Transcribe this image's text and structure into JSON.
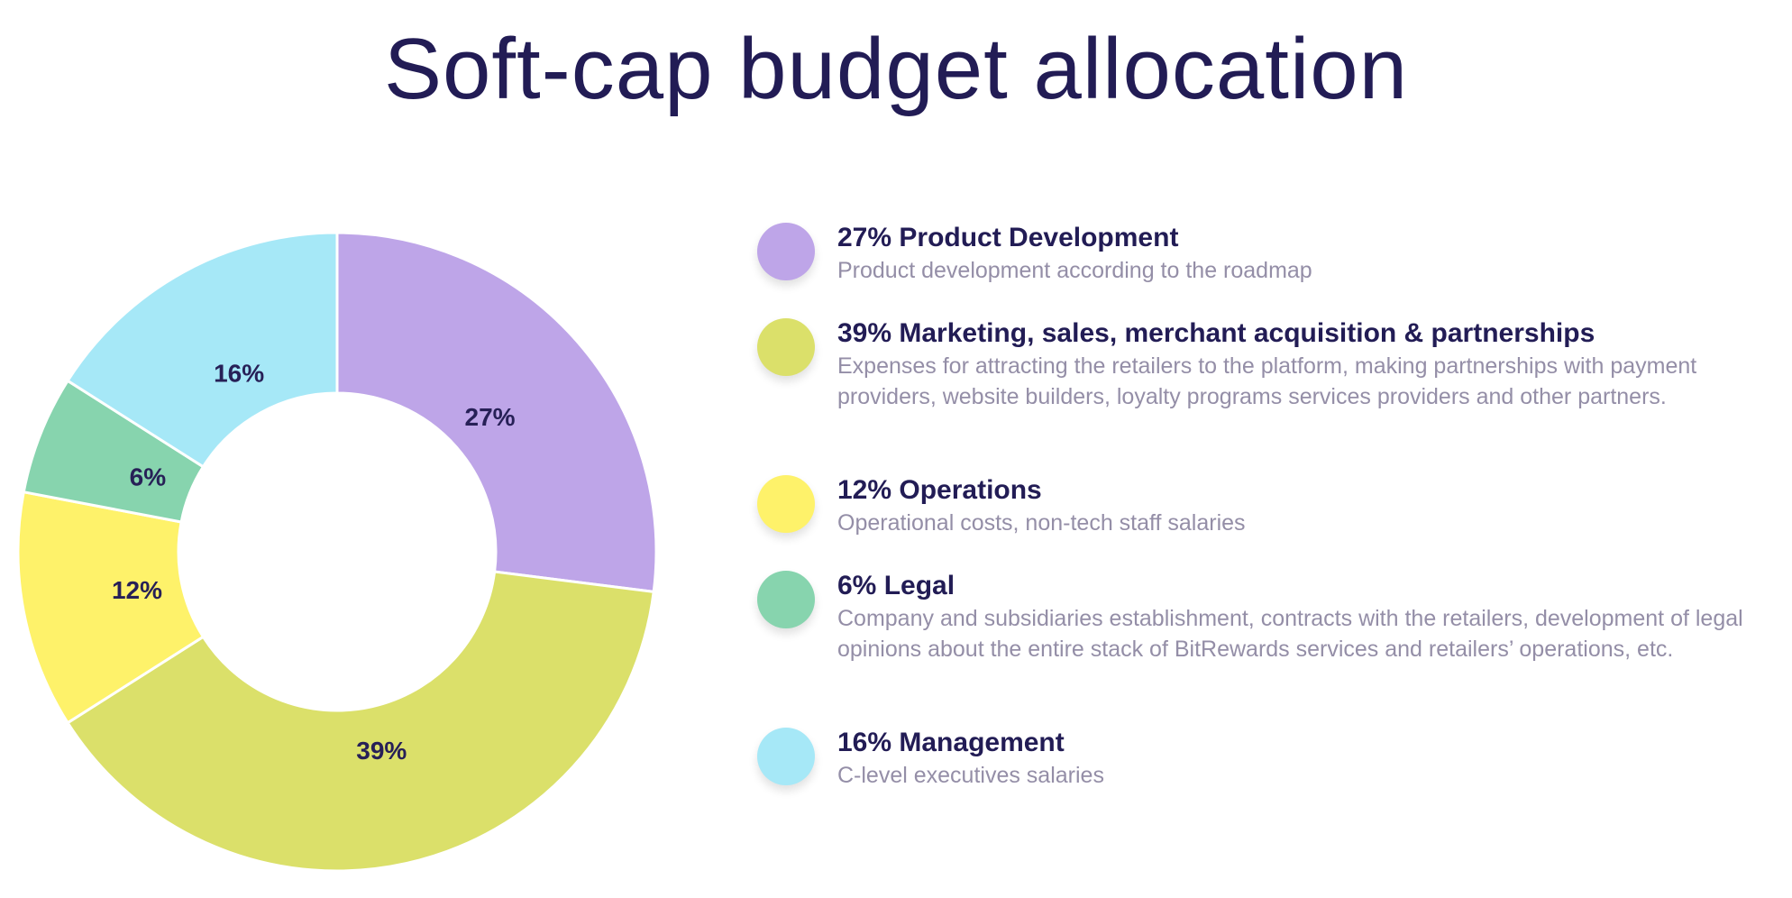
{
  "title": "Soft-cap budget allocation",
  "colors": {
    "product": "#bea5e8",
    "marketing": "#dbe06a",
    "operations": "#fef26a",
    "legal": "#87d4ae",
    "management": "#a6e8f7"
  },
  "chart_data": {
    "type": "pie",
    "subtype": "donut",
    "title": "Soft-cap budget allocation",
    "categories": [
      "Product Development",
      "Marketing, sales, merchant acquisition & partnerships",
      "Operations",
      "Legal",
      "Management"
    ],
    "values": [
      27,
      39,
      12,
      6,
      16
    ],
    "unit": "%",
    "slice_labels": [
      "27%",
      "39%",
      "12%",
      "6%",
      "16%"
    ]
  },
  "legend": [
    {
      "title": "27% Product Development",
      "description": "Product development according to the roadmap",
      "color_key": "product"
    },
    {
      "title": "39% Marketing, sales, merchant acquisition & partnerships",
      "description": "Expenses for attracting the retailers to the platform, making partnerships with payment providers, website builders, loyalty programs services providers and other partners.",
      "color_key": "marketing"
    },
    {
      "title": "12% Operations",
      "description": "Operational costs, non-tech staff salaries",
      "color_key": "operations"
    },
    {
      "title": "6% Legal",
      "description": "Company and subsidiaries establishment, contracts with the retailers, development of legal opinions about the entire stack of BitRewards services and retailers’ operations, etc.",
      "color_key": "legal"
    },
    {
      "title": "16% Management",
      "description": "C-level executives salaries",
      "color_key": "management"
    }
  ]
}
